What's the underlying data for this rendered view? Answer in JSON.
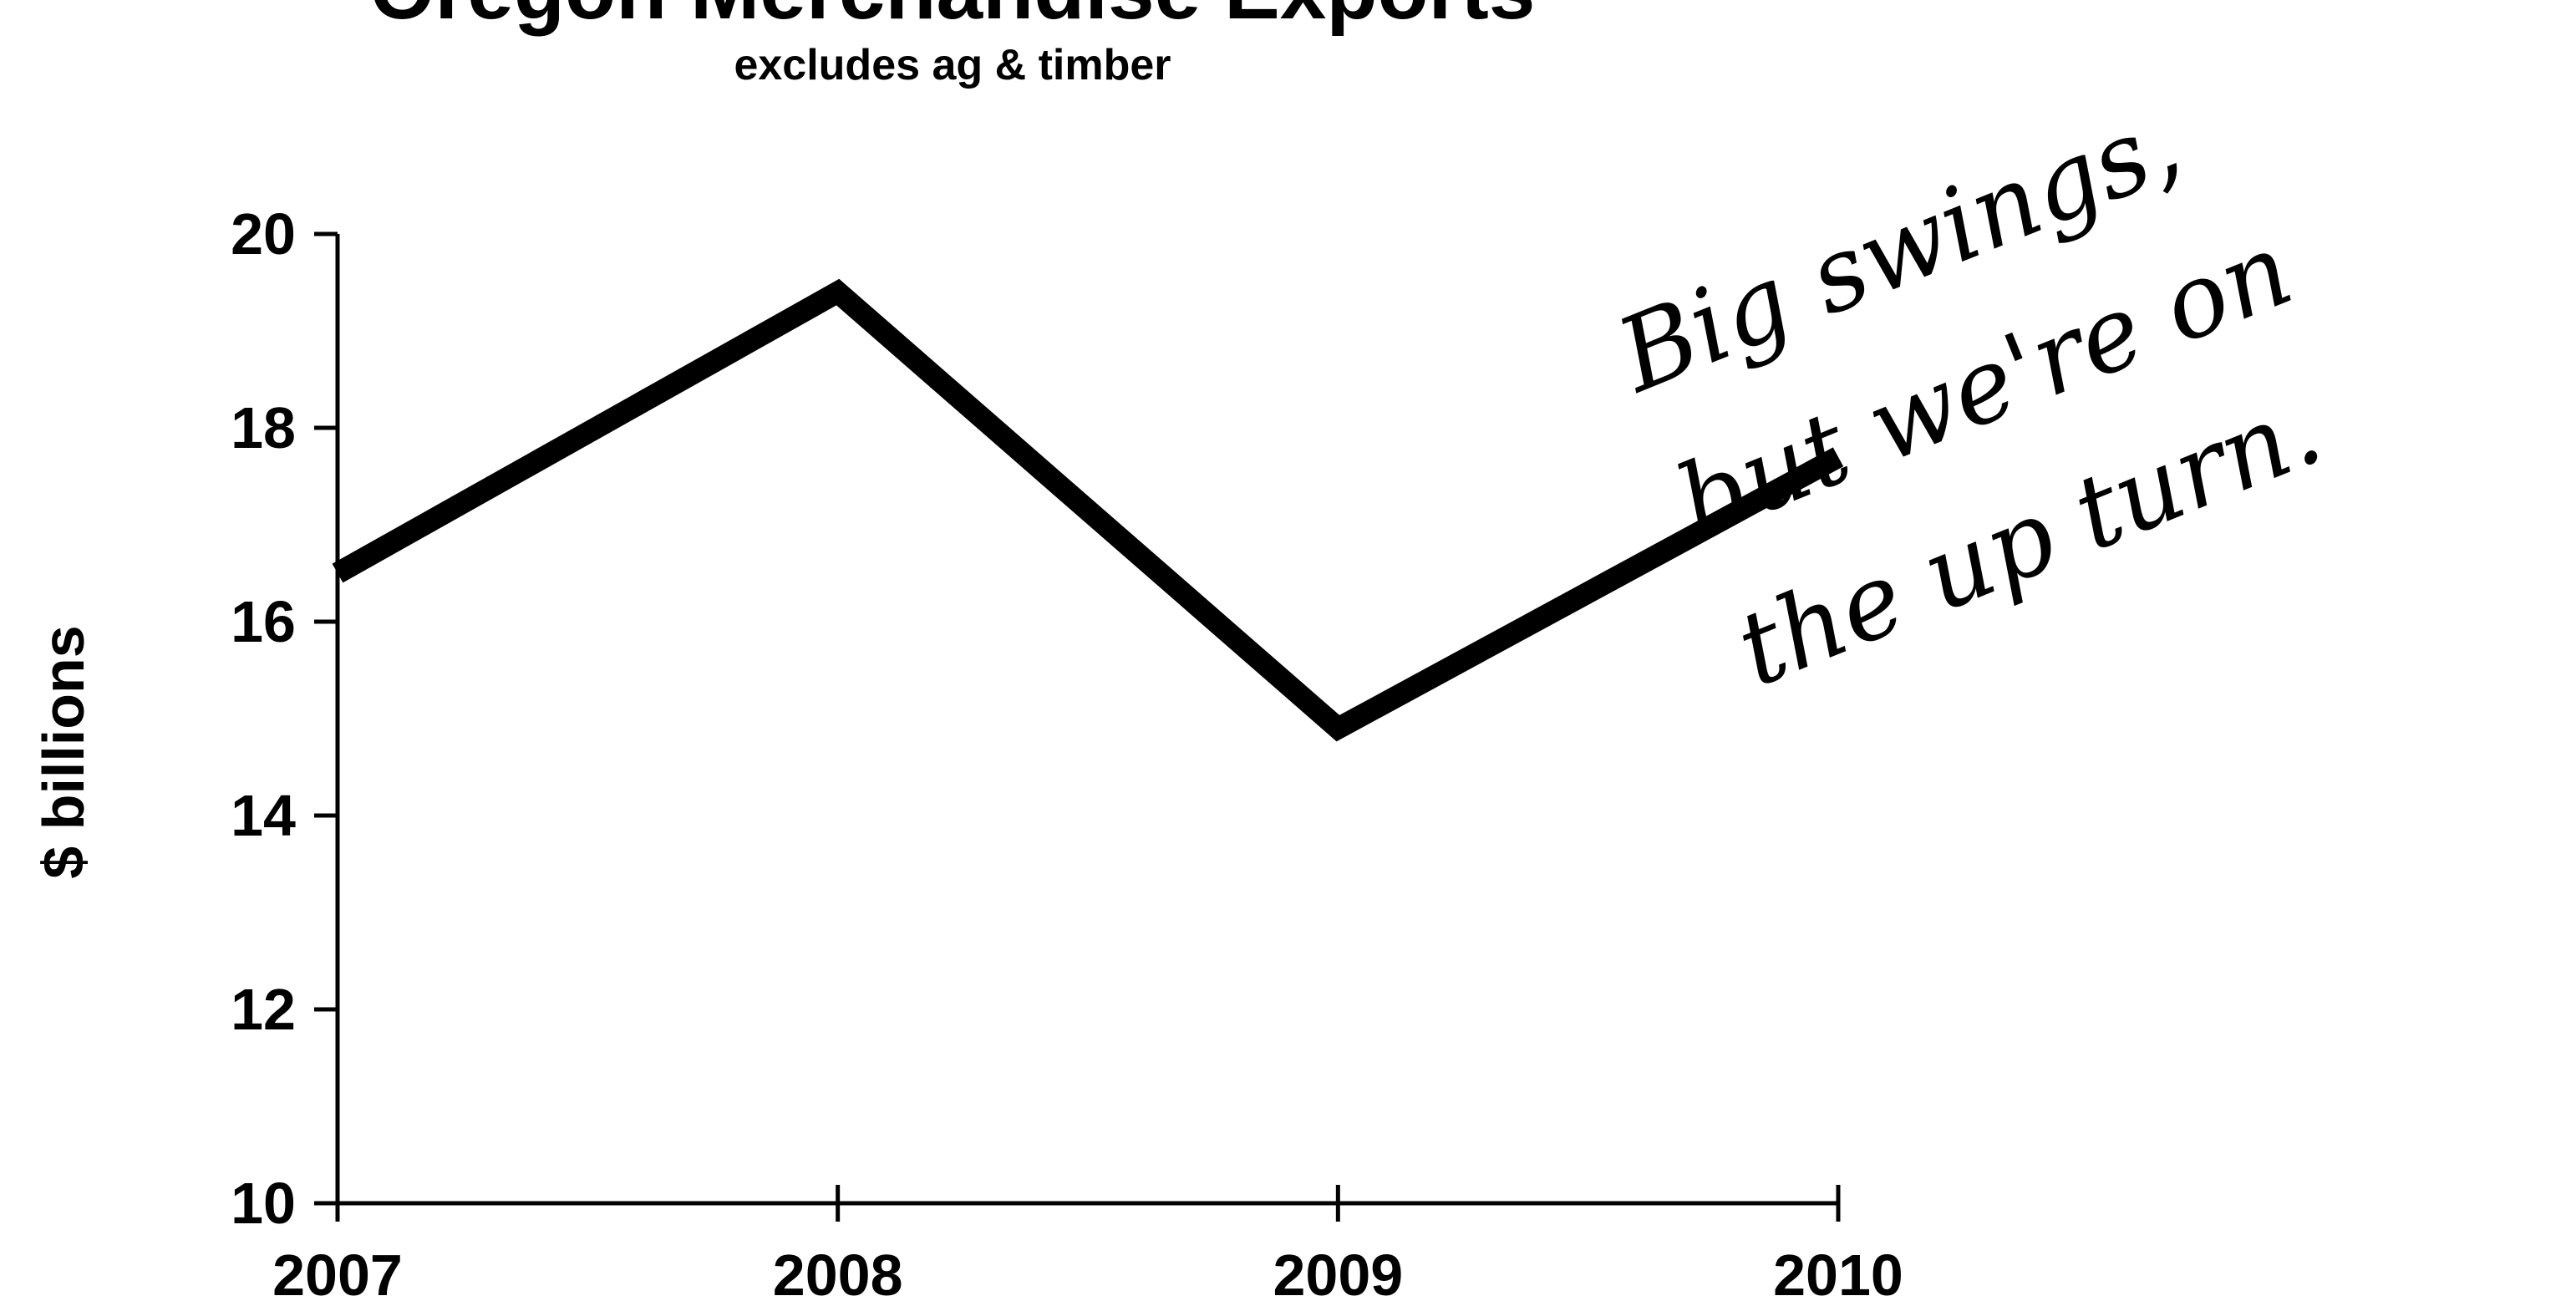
{
  "chart_data": {
    "type": "line",
    "title": "Oregon Merchandise Exports",
    "subtitle": "excludes ag & timber",
    "xlabel": "",
    "ylabel": "$ billions",
    "categories": [
      "2007",
      "2008",
      "2009",
      "2010"
    ],
    "series": [
      {
        "values": [
          16.5,
          19.4,
          14.9,
          17.7
        ],
        "color": "#000000"
      }
    ],
    "ylim": [
      10,
      20
    ],
    "yticks": [
      10,
      12,
      14,
      16,
      18,
      20
    ],
    "grid": false,
    "legend": "none",
    "annotation": {
      "lines": [
        "Big swings,",
        "but we're on",
        "the up turn."
      ],
      "style": "handwritten"
    }
  }
}
